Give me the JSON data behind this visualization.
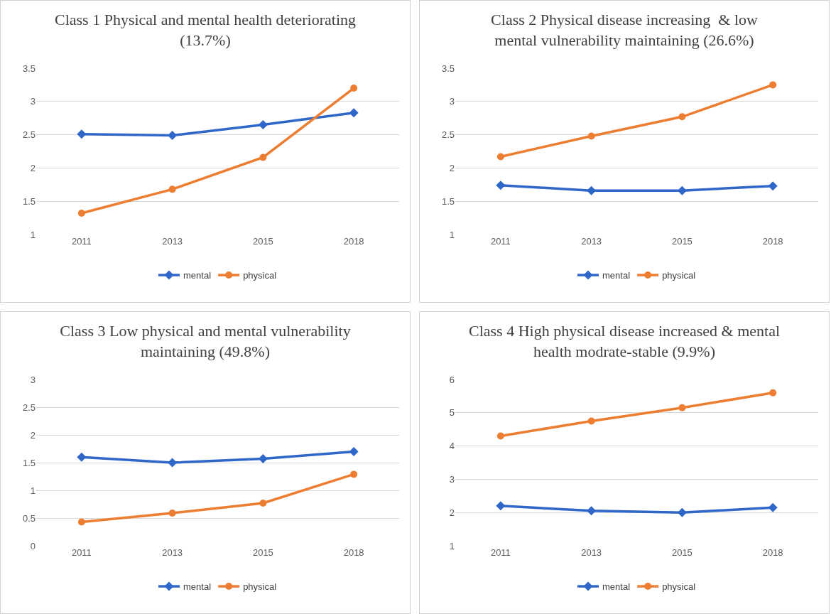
{
  "chart_data": [
    {
      "type": "line",
      "title": "Class 1 Physical and mental health deteriorating (13.7%)",
      "categories": [
        "2011",
        "2013",
        "2015",
        "2018"
      ],
      "ylim": [
        1,
        3.5
      ],
      "yticks": [
        1,
        1.5,
        2,
        2.5,
        3,
        3.5
      ],
      "grid": "y",
      "legend": "bottom",
      "line_style": "solid",
      "series": [
        {
          "name": "mental",
          "color": "#2e67c9",
          "marker": "diamond",
          "values": [
            2.51,
            2.49,
            2.65,
            2.83
          ]
        },
        {
          "name": "physical",
          "color": "#ed7d31",
          "marker": "circle",
          "values": [
            1.32,
            1.68,
            2.16,
            3.2
          ]
        }
      ]
    },
    {
      "type": "line",
      "title": "Class 2 Physical disease increasing  & low mental vulnerability maintaining (26.6%)",
      "categories": [
        "2011",
        "2013",
        "2015",
        "2018"
      ],
      "ylim": [
        1,
        3.5
      ],
      "yticks": [
        1,
        1.5,
        2,
        2.5,
        3,
        3.5
      ],
      "grid": "y",
      "legend": "bottom",
      "line_style": "solid",
      "series": [
        {
          "name": "mental",
          "color": "#2e67c9",
          "marker": "diamond",
          "values": [
            1.74,
            1.66,
            1.66,
            1.73
          ]
        },
        {
          "name": "physical",
          "color": "#ed7d31",
          "marker": "circle",
          "values": [
            2.17,
            2.48,
            2.77,
            3.25
          ]
        }
      ]
    },
    {
      "type": "line",
      "title": "Class 3 Low physical and mental vulnerability maintaining (49.8%)",
      "categories": [
        "2011",
        "2013",
        "2015",
        "2018"
      ],
      "ylim": [
        0,
        3
      ],
      "yticks": [
        0,
        0.5,
        1,
        1.5,
        2,
        2.5,
        3
      ],
      "grid": "y",
      "legend": "bottom",
      "line_style": "solid",
      "series": [
        {
          "name": "mental",
          "color": "#2e67c9",
          "marker": "diamond",
          "values": [
            1.6,
            1.5,
            1.57,
            1.7
          ]
        },
        {
          "name": "physical",
          "color": "#ed7d31",
          "marker": "circle",
          "values": [
            0.43,
            0.59,
            0.77,
            1.29
          ]
        }
      ]
    },
    {
      "type": "line",
      "title": "Class 4 High physical disease increased & mental health modrate-stable (9.9%)",
      "categories": [
        "2011",
        "2013",
        "2015",
        "2018"
      ],
      "ylim": [
        1,
        6
      ],
      "yticks": [
        1,
        2,
        3,
        4,
        5,
        6
      ],
      "grid": "y",
      "legend": "bottom",
      "line_style": "solid",
      "series": [
        {
          "name": "mental",
          "color": "#2e67c9",
          "marker": "diamond",
          "values": [
            2.2,
            2.05,
            2.0,
            2.15
          ]
        },
        {
          "name": "physical",
          "color": "#ed7d31",
          "marker": "circle",
          "values": [
            4.3,
            4.75,
            5.15,
            5.6
          ]
        }
      ]
    }
  ]
}
